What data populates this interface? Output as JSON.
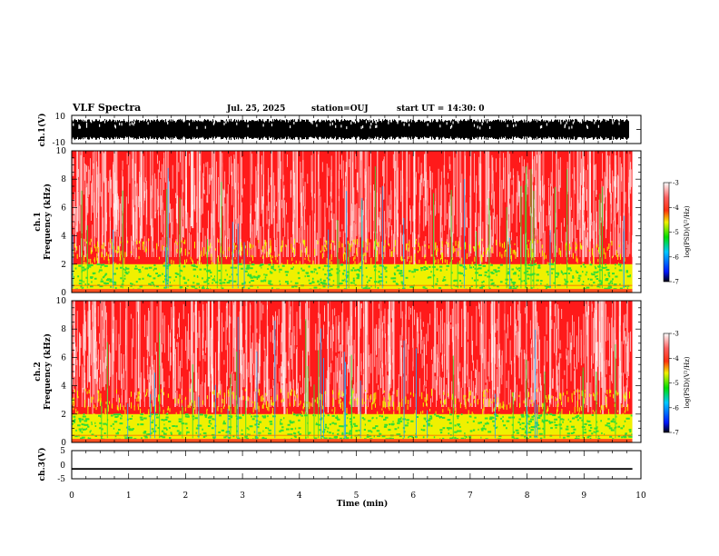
{
  "header": {
    "title": "VLF Spectra",
    "date": "Jul. 25, 2025",
    "station": "station=OUJ",
    "start_time": "start UT =  14:30: 0"
  },
  "chart_data": [
    {
      "type": "line",
      "name": "ch1-waveform",
      "ylabel": "ch.1(V)",
      "ylim": [
        -10,
        10
      ],
      "ytick_labels": [
        "10",
        "-10"
      ],
      "description_values": "dense waveform filling approximately -7 to 7 V",
      "xlim": [
        0,
        10
      ]
    },
    {
      "type": "heatmap",
      "name": "ch1-spectrogram",
      "ylabel_line1": "ch.1",
      "ylabel_line2": "Frequency (kHz)",
      "ylim": [
        0,
        10
      ],
      "ytick_labels": [
        "0",
        "2",
        "4",
        "6",
        "8",
        "10"
      ],
      "xlim": [
        0,
        9.85
      ],
      "band_values": [
        {
          "freq_range": [
            0,
            2
          ],
          "log_psd": -4.7
        },
        {
          "freq_range": [
            2,
            3.5
          ],
          "log_psd": -4.2
        },
        {
          "freq_range": [
            3.5,
            10
          ],
          "log_psd": -3.6
        }
      ],
      "colorbar": {
        "label": "log(PSD)(V²/Hz)",
        "range": [
          -7,
          -3
        ],
        "tick_labels": [
          "-3",
          "-4",
          "-5",
          "-6",
          "-7"
        ]
      }
    },
    {
      "type": "heatmap",
      "name": "ch2-spectrogram",
      "ylabel_line1": "ch.2",
      "ylabel_line2": "Frequency (kHz)",
      "ylim": [
        0,
        10
      ],
      "ytick_labels": [
        "0",
        "2",
        "4",
        "6",
        "8",
        "10"
      ],
      "xlim": [
        0,
        9.85
      ],
      "band_values": [
        {
          "freq_range": [
            0,
            2
          ],
          "log_psd": -4.7
        },
        {
          "freq_range": [
            2,
            3.5
          ],
          "log_psd": -4.2
        },
        {
          "freq_range": [
            3.5,
            10
          ],
          "log_psd": -3.6
        }
      ],
      "colorbar": {
        "label": "log(PSD)(V²/Hz)",
        "range": [
          -7,
          -3
        ],
        "tick_labels": [
          "-3",
          "-4",
          "-5",
          "-6",
          "-7"
        ]
      }
    },
    {
      "type": "line",
      "name": "ch3-voltage",
      "ylabel": "ch.3(V)",
      "ylim": [
        -5,
        5
      ],
      "ytick_labels": [
        "5",
        "0",
        "-5"
      ],
      "x": [
        0,
        9.85
      ],
      "y": [
        -1.5,
        -1.5
      ],
      "xlim": [
        0,
        10
      ]
    }
  ],
  "x_axis": {
    "label": "Time (min)",
    "tick_labels": [
      "0",
      "1",
      "2",
      "3",
      "4",
      "5",
      "6",
      "7",
      "8",
      "9",
      "10"
    ]
  },
  "colors": {
    "red": "#ff1a1a",
    "yellow": "#f0f000",
    "green": "#33dd33",
    "blue": "#2244ff",
    "white": "#ffffff"
  }
}
